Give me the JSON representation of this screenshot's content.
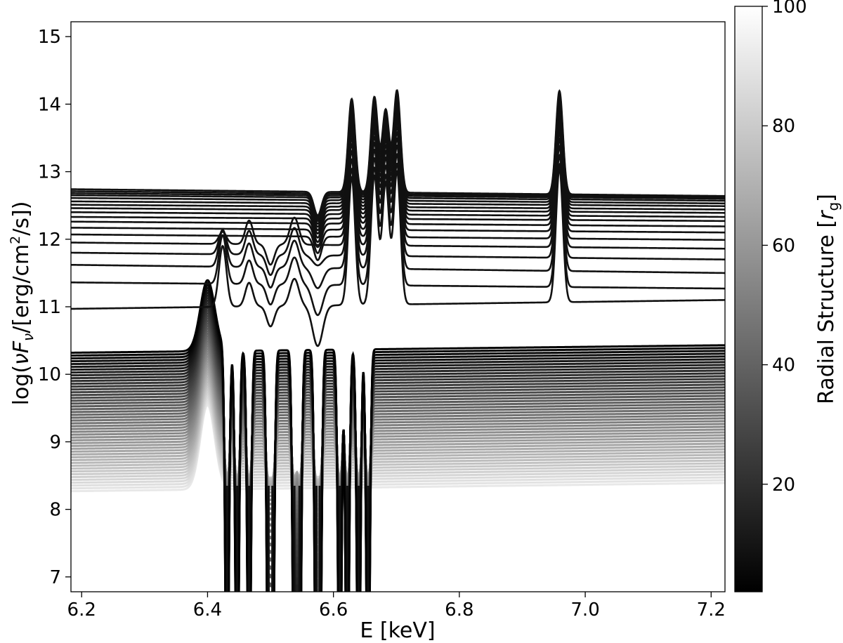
{
  "chart_data": {
    "type": "line",
    "xlabel": "E [keV]",
    "ylabel": "log(νFν/[erg/cm²/s])",
    "xlim": [
      6.183,
      7.222
    ],
    "ylim": [
      6.78,
      15.22
    ],
    "xticks": [
      "6.2",
      "6.4",
      "6.6",
      "6.8",
      "7.0",
      "7.2"
    ],
    "yticks": [
      "7",
      "8",
      "9",
      "10",
      "11",
      "12",
      "13",
      "14",
      "15"
    ],
    "colorbar": {
      "label": "Radial Structure [r_g]",
      "range": [
        2,
        100
      ],
      "ticks": [
        "20",
        "40",
        "60",
        "80",
        "100"
      ],
      "colormap": "greys: black (low) to white (high)"
    },
    "series_count": 68,
    "inner_group": {
      "radius_range_rg": [
        2,
        12
      ],
      "continuum_at_6.19_keV": [
        10.97,
        11.36,
        11.62,
        11.8,
        11.95,
        12.07,
        12.17,
        12.26,
        12.33,
        12.4,
        12.46,
        12.51,
        12.56,
        12.61,
        12.65,
        12.68,
        12.71,
        12.74
      ],
      "continuum_at_7.22_keV": [
        11.1,
        11.27,
        11.5,
        11.7,
        11.86,
        11.99,
        12.1,
        12.19,
        12.27,
        12.33,
        12.39,
        12.44,
        12.49,
        12.53,
        12.57,
        12.6,
        12.62,
        12.64
      ],
      "emission_lines_keV": [
        6.629,
        6.665,
        6.683,
        6.701,
        6.959
      ],
      "emission_line_peaks": [
        14.12,
        14.15,
        13.96,
        14.25,
        14.27
      ]
    },
    "outer_group": {
      "radius_range_rg": [
        14,
        100
      ],
      "continuum_at_6.19_keV": [
        10.32,
        8.27
      ],
      "continuum_at_7.22_keV": [
        10.43,
        8.39
      ],
      "fe_k_alpha_line_keV": 6.4,
      "fe_k_alpha_peak_inner": 11.37,
      "fe_k_alpha_peak_outer": 9.52
    },
    "absorption_lines_keV": [
      6.431,
      6.447,
      6.466,
      6.497,
      6.503,
      6.538,
      6.546,
      6.573,
      6.578,
      6.61,
      6.622,
      6.64,
      6.655
    ],
    "grid": false,
    "legend": "none"
  }
}
